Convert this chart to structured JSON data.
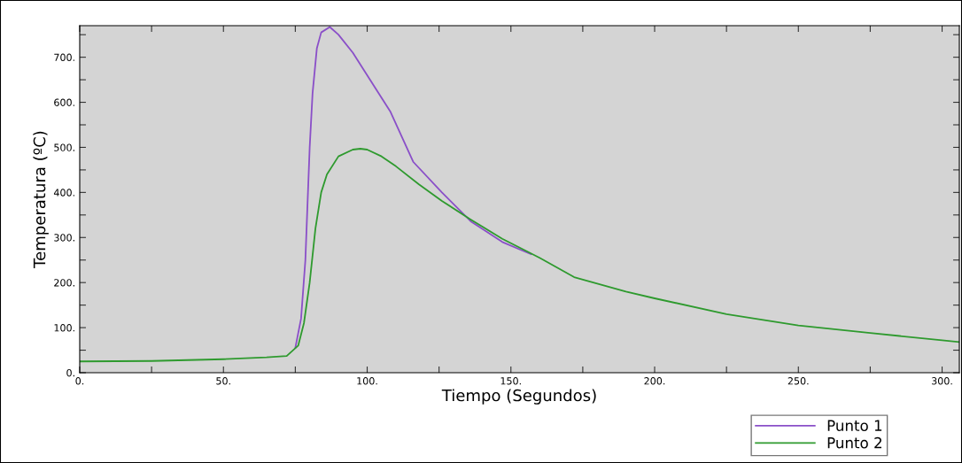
{
  "chart_data": {
    "type": "line",
    "xlabel": "Tiempo (Segundos)",
    "ylabel": "Temperatura (ºC)",
    "xlim": [
      0,
      306
    ],
    "ylim": [
      0,
      770
    ],
    "xticks": [
      {
        "value": 0,
        "label": "0."
      },
      {
        "value": 25,
        "label": null
      },
      {
        "value": 50,
        "label": "50."
      },
      {
        "value": 75,
        "label": null
      },
      {
        "value": 100,
        "label": "100."
      },
      {
        "value": 125,
        "label": null
      },
      {
        "value": 150,
        "label": "150."
      },
      {
        "value": 175,
        "label": null
      },
      {
        "value": 200,
        "label": "200."
      },
      {
        "value": 225,
        "label": null
      },
      {
        "value": 250,
        "label": "250."
      },
      {
        "value": 275,
        "label": null
      },
      {
        "value": 300,
        "label": "300."
      }
    ],
    "yticks": [
      {
        "value": 0,
        "label": "0."
      },
      {
        "value": 50,
        "label": null
      },
      {
        "value": 100,
        "label": "100."
      },
      {
        "value": 150,
        "label": null
      },
      {
        "value": 200,
        "label": "200."
      },
      {
        "value": 250,
        "label": null
      },
      {
        "value": 300,
        "label": "300."
      },
      {
        "value": 350,
        "label": null
      },
      {
        "value": 400,
        "label": "400."
      },
      {
        "value": 450,
        "label": null
      },
      {
        "value": 500,
        "label": "500."
      },
      {
        "value": 550,
        "label": null
      },
      {
        "value": 600,
        "label": "600."
      },
      {
        "value": 650,
        "label": null
      },
      {
        "value": 700,
        "label": "700."
      },
      {
        "value": 750,
        "label": null
      }
    ],
    "grid": false,
    "legend": "bottom right",
    "marker": "none",
    "line_style": "solid",
    "series": [
      {
        "name": "Punto 1",
        "color": "#8a4fc8",
        "x": [
          75,
          77,
          78.5,
          80,
          81,
          82.5,
          84,
          87,
          90,
          95,
          100,
          108,
          116,
          126,
          136,
          147,
          157
        ],
        "values": [
          55,
          120,
          250,
          500,
          620,
          720,
          755,
          767,
          750,
          710,
          660,
          580,
          468,
          400,
          336,
          290,
          263
        ]
      },
      {
        "name": "Punto 2",
        "color": "#2e9a2e",
        "x": [
          0,
          25,
          50,
          65,
          72,
          76,
          78,
          80,
          82,
          84,
          86,
          90,
          95,
          97.6,
          100,
          105,
          110,
          118,
          126,
          136,
          147,
          160,
          172,
          190,
          200,
          225,
          250,
          275,
          300,
          306
        ],
        "values": [
          25,
          26,
          30,
          34,
          37,
          60,
          110,
          200,
          320,
          400,
          440,
          480,
          495,
          497,
          495,
          480,
          458,
          418,
          381,
          340,
          297,
          255,
          212,
          180,
          165,
          130,
          105,
          88,
          72,
          68
        ]
      }
    ]
  }
}
